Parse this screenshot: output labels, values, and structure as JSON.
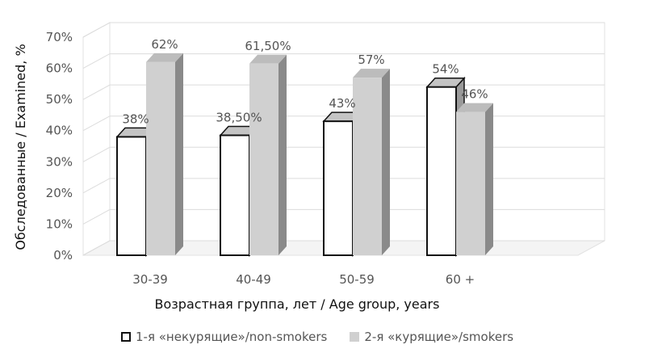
{
  "chart_data": {
    "type": "bar",
    "title": "",
    "xlabel": "Возрастная группа, лет / Age group, years",
    "ylabel": "Обследованные / Examined, %",
    "ylim": [
      0,
      70
    ],
    "yticks": [
      "0%",
      "10%",
      "20%",
      "30%",
      "40%",
      "50%",
      "60%",
      "70%"
    ],
    "categories": [
      "30-39",
      "40-49",
      "50-59",
      "60 +"
    ],
    "series": [
      {
        "name": "1-я «некурящие»/non-smokers",
        "values": [
          38,
          38.5,
          43,
          54
        ],
        "labels": [
          "38%",
          "38,50%",
          "43%",
          "54%"
        ],
        "color": "#ffffff",
        "edge": "#111111"
      },
      {
        "name": "2-я «курящие»/smokers",
        "values": [
          62,
          61.5,
          57,
          46
        ],
        "labels": [
          "62%",
          "61,50%",
          "57%",
          "46%"
        ],
        "color": "#d0d0d0",
        "edge": "#d0d0d0"
      }
    ],
    "grid": true,
    "legend_position": "bottom",
    "style": "3d-column"
  }
}
